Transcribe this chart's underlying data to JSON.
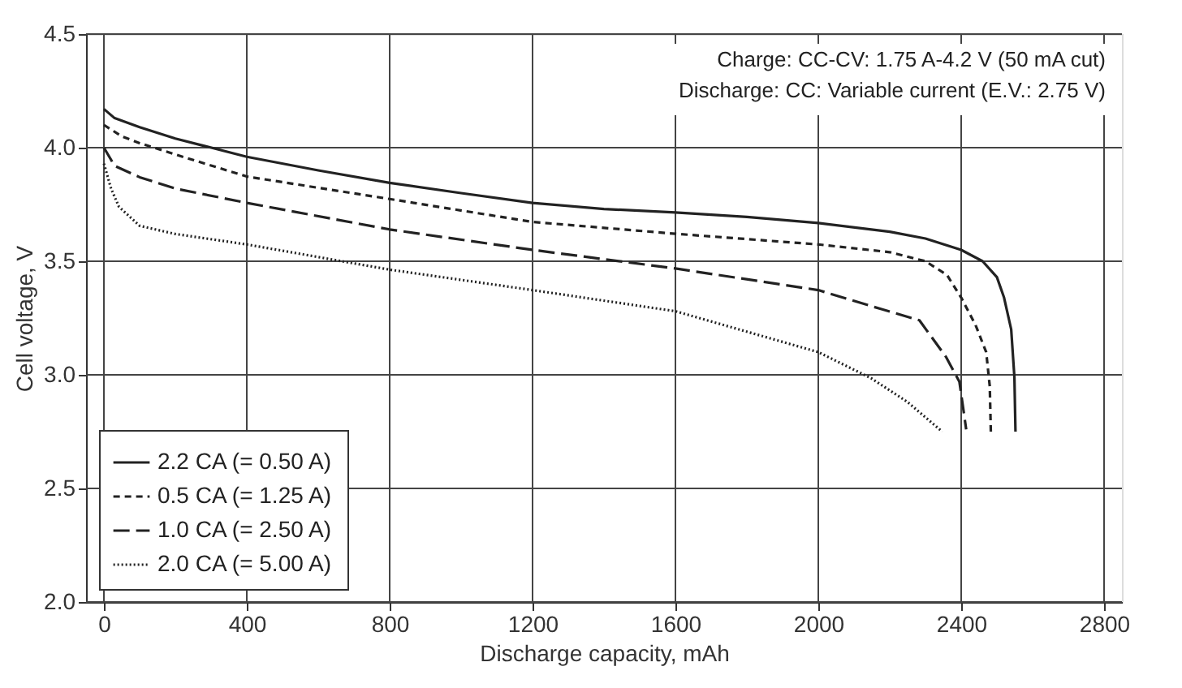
{
  "chart_data": {
    "type": "line",
    "xlabel": "Discharge capacity, mAh",
    "ylabel": "Cell voltage, V",
    "annotations": [
      "Charge: CC-CV: 1.75 A-4.2 V (50 mA cut)",
      "Discharge: CC: Variable current (E.V.: 2.75 V)"
    ],
    "xlim": [
      -50,
      2850
    ],
    "ylim": [
      2.0,
      4.5
    ],
    "xticks": [
      0,
      400,
      800,
      1200,
      1600,
      2000,
      2400,
      2800
    ],
    "yticks": [
      {
        "value": 2.0,
        "label": "2.0"
      },
      {
        "value": 2.5,
        "label": "2.5"
      },
      {
        "value": 3.0,
        "label": "3.0"
      },
      {
        "value": 3.5,
        "label": "3.5"
      },
      {
        "value": 4.0,
        "label": "4.0"
      },
      {
        "value": 4.5,
        "label": "4.5"
      }
    ],
    "grid": true,
    "legend": "bottom left",
    "marker": "none",
    "series": [
      {
        "name": "2.2 CA (= 0.50 A)",
        "color": "#222222",
        "line_style": "solid",
        "x": [
          0,
          30,
          100,
          200,
          400,
          600,
          800,
          1000,
          1200,
          1400,
          1600,
          1800,
          2000,
          2200,
          2300,
          2400,
          2460,
          2500,
          2520,
          2540,
          2549,
          2552
        ],
        "values": [
          4.17,
          4.13,
          4.09,
          4.04,
          3.96,
          3.9,
          3.845,
          3.8,
          3.757,
          3.73,
          3.715,
          3.695,
          3.668,
          3.63,
          3.6,
          3.55,
          3.5,
          3.43,
          3.34,
          3.2,
          2.99,
          2.75
        ]
      },
      {
        "name": "0.5 CA (= 1.25 A)",
        "color": "#222222",
        "line_style": "dashed",
        "x": [
          0,
          50,
          100,
          200,
          400,
          800,
          1200,
          1600,
          2000,
          2200,
          2300,
          2360,
          2400,
          2440,
          2470,
          2480,
          2483
        ],
        "values": [
          4.1,
          4.05,
          4.02,
          3.97,
          3.873,
          3.774,
          3.673,
          3.621,
          3.574,
          3.54,
          3.5,
          3.44,
          3.34,
          3.22,
          3.1,
          2.95,
          2.75
        ]
      },
      {
        "name": "1.0 CA (= 2.50 A)",
        "color": "#222222",
        "line_style": "longdash",
        "x": [
          0,
          30,
          100,
          200,
          400,
          800,
          1200,
          1600,
          2000,
          2175,
          2283,
          2357,
          2395,
          2414
        ],
        "values": [
          4.0,
          3.92,
          3.87,
          3.82,
          3.757,
          3.64,
          3.55,
          3.468,
          3.373,
          3.29,
          3.24,
          3.08,
          2.97,
          2.76
        ]
      },
      {
        "name": "2.0 CA (= 5.00 A)",
        "color": "#222222",
        "line_style": "dotted",
        "x": [
          0,
          20,
          42,
          100,
          200,
          400,
          800,
          1200,
          1600,
          2000,
          2148,
          2250,
          2347
        ],
        "values": [
          3.93,
          3.82,
          3.74,
          3.656,
          3.62,
          3.574,
          3.463,
          3.373,
          3.28,
          3.1,
          2.985,
          2.88,
          2.75
        ]
      }
    ]
  }
}
